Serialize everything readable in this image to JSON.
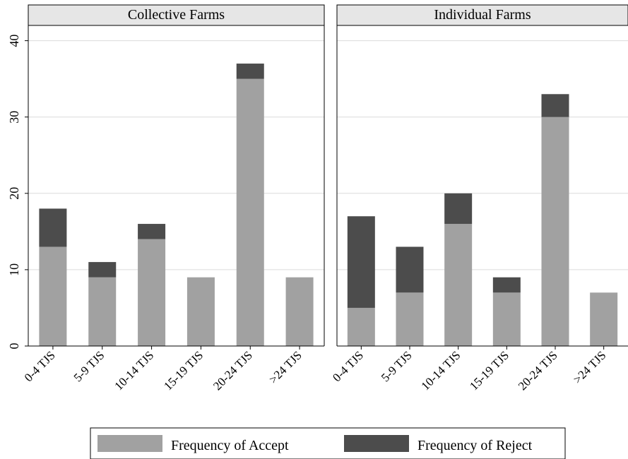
{
  "colors": {
    "accept": "#a1a1a1",
    "reject": "#4c4c4c",
    "strip": "#e6e6e6",
    "grid": "#dcdcdc"
  },
  "legend": {
    "placement": "bottom",
    "accept_label": "Frequency of Accept",
    "reject_label": "Frequency of Reject"
  },
  "chart_data": {
    "type": "bar",
    "stacked": true,
    "ylim": [
      0,
      42
    ],
    "yticks": [
      "0",
      "10",
      "20",
      "30",
      "40"
    ],
    "categories": [
      "0-4 TJS",
      "5-9 TJS",
      "10-14 TJS",
      "15-19 TJS",
      "20-24 TJS",
      ">24 TJS"
    ],
    "panels": [
      {
        "title": "Collective Farms",
        "series": [
          {
            "name": "Frequency of Accept",
            "values": [
              13,
              9,
              14,
              9,
              35,
              9
            ]
          },
          {
            "name": "Frequency of Reject",
            "values": [
              5,
              2,
              2,
              0,
              2,
              0
            ]
          }
        ]
      },
      {
        "title": "Individual Farms",
        "series": [
          {
            "name": "Frequency of Accept",
            "values": [
              5,
              7,
              16,
              7,
              30,
              7
            ]
          },
          {
            "name": "Frequency of Reject",
            "values": [
              12,
              6,
              4,
              2,
              3,
              0
            ]
          }
        ]
      }
    ]
  }
}
